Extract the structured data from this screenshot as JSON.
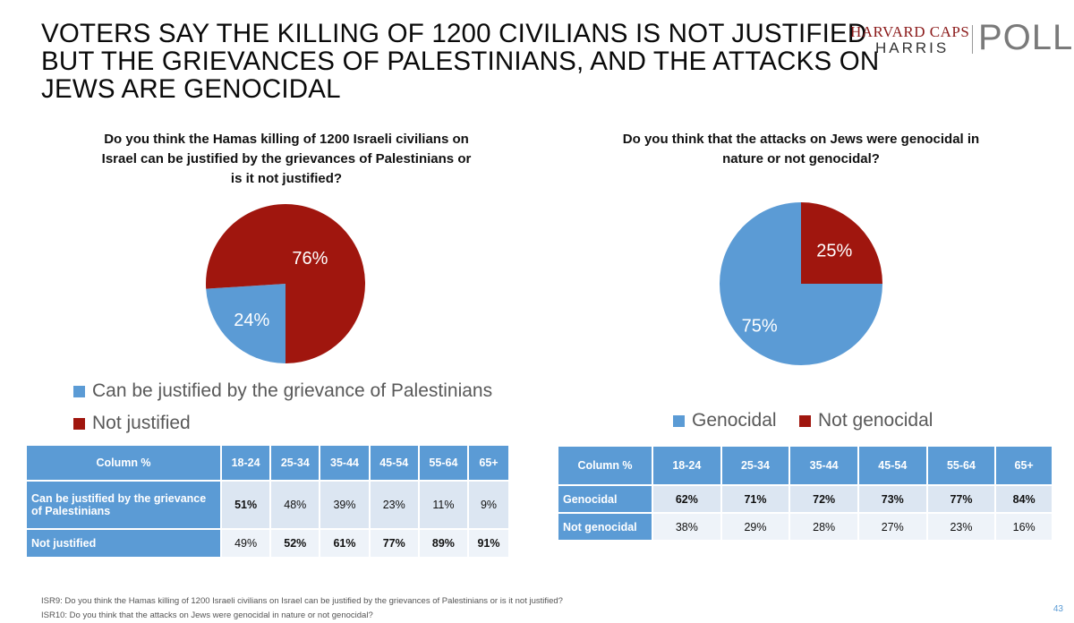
{
  "title_lines": [
    "VOTERS SAY THE KILLING OF 1200 CIVILIANS IS NOT JUSTIFIED",
    "BUT THE GRIEVANCES OF PALESTINIANS, AND THE ATTACKS ON",
    "JEWS ARE GENOCIDAL"
  ],
  "logo": {
    "line1": "HARVARD CAPS",
    "line2": "HARRIS",
    "line3": "POLL"
  },
  "colors": {
    "blue": "#5b9bd5",
    "red": "#a0160e",
    "table_header": "#5b9bd5"
  },
  "chart_data": [
    {
      "type": "pie",
      "title": "Do you think the Hamas killing of 1200 Israeli civilians on Israel can be justified by the grievances of Palestinians or is it not justified?",
      "title_lines": [
        "Do you think the Hamas killing of 1200 Israeli civilians on",
        "Israel can be justified by the grievances of Palestinians or",
        "is it not justified?"
      ],
      "categories": [
        "Can be justified by the grievance of Palestinians",
        "Not justified"
      ],
      "values": [
        24,
        76
      ],
      "labels": [
        "24%",
        "76%"
      ],
      "colors": [
        "#5b9bd5",
        "#a0160e"
      ],
      "legend_position": "bottom"
    },
    {
      "type": "pie",
      "title": "Do you think that the attacks on Jews were genocidal in nature or not genocidal?",
      "title_lines": [
        "Do you think that the attacks on Jews were genocidal in",
        "nature or not genocidal?"
      ],
      "categories": [
        "Genocidal",
        "Not genocidal"
      ],
      "values": [
        75,
        25
      ],
      "labels": [
        "75%",
        "25%"
      ],
      "colors": [
        "#5b9bd5",
        "#a0160e"
      ],
      "legend_position": "bottom"
    }
  ],
  "table1": {
    "header": [
      "Column %",
      "18-24",
      "25-34",
      "35-44",
      "45-54",
      "55-64",
      "65+"
    ],
    "rows": [
      {
        "label": "Can be justified by the grievance of Palestinians",
        "cells": [
          "51%",
          "48%",
          "39%",
          "23%",
          "11%",
          "9%"
        ],
        "bold": [
          true,
          false,
          false,
          false,
          false,
          false
        ]
      },
      {
        "label": "Not justified",
        "cells": [
          "49%",
          "52%",
          "61%",
          "77%",
          "89%",
          "91%"
        ],
        "bold": [
          false,
          true,
          true,
          true,
          true,
          true
        ]
      }
    ]
  },
  "table2": {
    "header": [
      "Column %",
      "18-24",
      "25-34",
      "35-44",
      "45-54",
      "55-64",
      "65+"
    ],
    "rows": [
      {
        "label": "Genocidal",
        "cells": [
          "62%",
          "71%",
          "72%",
          "73%",
          "77%",
          "84%"
        ],
        "bold": [
          true,
          true,
          true,
          true,
          true,
          true
        ]
      },
      {
        "label": "Not genocidal",
        "cells": [
          "38%",
          "29%",
          "28%",
          "27%",
          "23%",
          "16%"
        ],
        "bold": [
          false,
          false,
          false,
          false,
          false,
          false
        ]
      }
    ]
  },
  "footnotes": [
    "ISR9: Do you think the Hamas killing of 1200 Israeli civilians on Israel can be justified by the grievances of Palestinians or is it not justified?",
    "ISR10: Do you think that the attacks on Jews were genocidal in nature or not genocidal?"
  ],
  "page_number": "43"
}
